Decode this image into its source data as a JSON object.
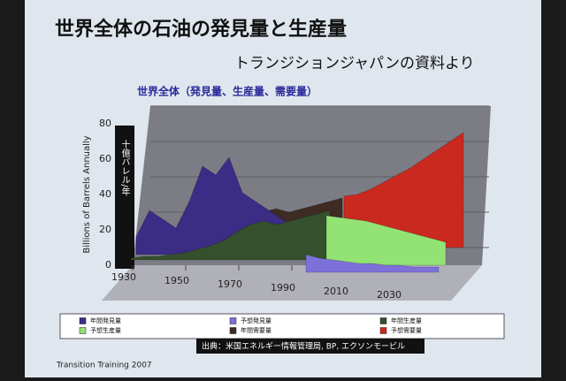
{
  "chart_data": {
    "type": "area3d",
    "title": "世界全体の石油の発見量と生産量",
    "subtitle": "トランジションジャパンの資料より",
    "chart_title": "世界全体（発見量、生産量、需要量）",
    "y_label": "Billions of Barrels Annually",
    "y_label_2": "十億バレル/年",
    "source": "出典：米国エネルギー情報管理局, BP, エクソンモービル",
    "footer": "Transition Training 2007",
    "x": [
      1930,
      1935,
      1940,
      1945,
      1950,
      1955,
      1960,
      1965,
      1970,
      1975,
      1980,
      1985,
      1990,
      1995,
      2000,
      2005,
      2010,
      2015,
      2020,
      2025,
      2030,
      2035,
      2040,
      2045,
      2050
    ],
    "xlim": [
      1930,
      2050
    ],
    "xticks": [
      1930,
      1950,
      1970,
      1990,
      2010,
      2030
    ],
    "ylim": [
      0,
      80
    ],
    "yticks": [
      0,
      20,
      40,
      60,
      80
    ],
    "grid": true,
    "series": [
      {
        "name": "年間発見量",
        "color": "#3b2c85",
        "values": [
          10,
          25,
          20,
          15,
          30,
          50,
          45,
          55,
          35,
          30,
          25,
          20,
          15,
          12,
          10,
          null,
          null,
          null,
          null,
          null,
          null,
          null,
          null,
          null,
          null
        ]
      },
      {
        "name": "予想発見量",
        "color": "#7d70d8",
        "values": [
          null,
          null,
          null,
          null,
          null,
          null,
          null,
          null,
          null,
          null,
          null,
          null,
          null,
          null,
          10,
          8,
          7,
          6,
          5,
          5,
          4,
          4,
          3,
          3,
          3
        ]
      },
      {
        "name": "年間生産量",
        "color": "#35502c",
        "values": [
          1,
          2,
          2,
          3,
          4,
          6,
          8,
          11,
          16,
          20,
          22,
          20,
          22,
          24,
          26,
          28,
          null,
          null,
          null,
          null,
          null,
          null,
          null,
          null,
          null
        ]
      },
      {
        "name": "予想生産量",
        "color": "#92e274",
        "values": [
          null,
          null,
          null,
          null,
          null,
          null,
          null,
          null,
          null,
          null,
          null,
          null,
          null,
          null,
          null,
          28,
          27,
          26,
          25,
          23,
          21,
          19,
          17,
          15,
          13
        ]
      },
      {
        "name": "年間需要量",
        "color": "#3d2b24",
        "values": [
          1,
          2,
          2,
          3,
          4,
          6,
          8,
          11,
          16,
          21,
          23,
          21,
          23,
          25,
          27,
          29,
          null,
          null,
          null,
          null,
          null,
          null,
          null,
          null,
          null
        ]
      },
      {
        "name": "予想需要量",
        "color": "#c9291f",
        "values": [
          null,
          null,
          null,
          null,
          null,
          null,
          null,
          null,
          null,
          null,
          null,
          null,
          null,
          null,
          null,
          29,
          30,
          33,
          37,
          41,
          45,
          50,
          55,
          60,
          65
        ]
      }
    ]
  }
}
